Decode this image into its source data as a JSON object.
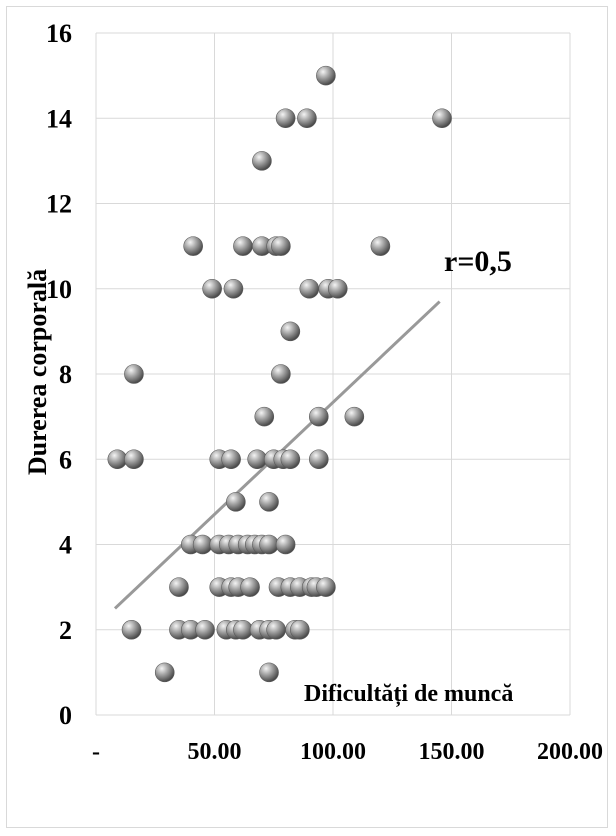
{
  "chart_data": {
    "type": "scatter",
    "title": "",
    "xlabel": "Dificultăți de muncă",
    "ylabel": "Durerea corporală",
    "annotation": "r=0,5",
    "xlim": [
      0,
      200
    ],
    "ylim": [
      0,
      16
    ],
    "x_ticks": [
      {
        "value": 0,
        "label": "-"
      },
      {
        "value": 50,
        "label": "50.00"
      },
      {
        "value": 100,
        "label": "100.00"
      },
      {
        "value": 150,
        "label": "150.00"
      },
      {
        "value": 200,
        "label": "200.00"
      }
    ],
    "y_ticks": [
      0,
      2,
      4,
      6,
      8,
      10,
      12,
      14,
      16
    ],
    "grid": true,
    "colors": {
      "point": "#8c8c8c",
      "trendline": "#999999",
      "grid": "#d9d9d9"
    },
    "trendline": {
      "x": [
        8,
        145
      ],
      "y": [
        2.5,
        9.7
      ]
    },
    "points": [
      {
        "x": 97,
        "y": 15
      },
      {
        "x": 80,
        "y": 14
      },
      {
        "x": 89,
        "y": 14
      },
      {
        "x": 146,
        "y": 14
      },
      {
        "x": 70,
        "y": 13
      },
      {
        "x": 41,
        "y": 11
      },
      {
        "x": 62,
        "y": 11
      },
      {
        "x": 70,
        "y": 11
      },
      {
        "x": 76,
        "y": 11
      },
      {
        "x": 78,
        "y": 11
      },
      {
        "x": 120,
        "y": 11
      },
      {
        "x": 49,
        "y": 10
      },
      {
        "x": 58,
        "y": 10
      },
      {
        "x": 90,
        "y": 10
      },
      {
        "x": 98,
        "y": 10
      },
      {
        "x": 102,
        "y": 10
      },
      {
        "x": 82,
        "y": 9
      },
      {
        "x": 16,
        "y": 8
      },
      {
        "x": 78,
        "y": 8
      },
      {
        "x": 71,
        "y": 7
      },
      {
        "x": 94,
        "y": 7
      },
      {
        "x": 109,
        "y": 7
      },
      {
        "x": 9,
        "y": 6
      },
      {
        "x": 16,
        "y": 6
      },
      {
        "x": 52,
        "y": 6
      },
      {
        "x": 57,
        "y": 6
      },
      {
        "x": 68,
        "y": 6
      },
      {
        "x": 75,
        "y": 6
      },
      {
        "x": 79,
        "y": 6
      },
      {
        "x": 82,
        "y": 6
      },
      {
        "x": 94,
        "y": 6
      },
      {
        "x": 59,
        "y": 5
      },
      {
        "x": 73,
        "y": 5
      },
      {
        "x": 40,
        "y": 4
      },
      {
        "x": 45,
        "y": 4
      },
      {
        "x": 52,
        "y": 4
      },
      {
        "x": 56,
        "y": 4
      },
      {
        "x": 60,
        "y": 4
      },
      {
        "x": 64,
        "y": 4
      },
      {
        "x": 67,
        "y": 4
      },
      {
        "x": 70,
        "y": 4
      },
      {
        "x": 73,
        "y": 4
      },
      {
        "x": 80,
        "y": 4
      },
      {
        "x": 35,
        "y": 3
      },
      {
        "x": 52,
        "y": 3
      },
      {
        "x": 57,
        "y": 3
      },
      {
        "x": 60,
        "y": 3
      },
      {
        "x": 65,
        "y": 3
      },
      {
        "x": 77,
        "y": 3
      },
      {
        "x": 82,
        "y": 3
      },
      {
        "x": 86,
        "y": 3
      },
      {
        "x": 91,
        "y": 3
      },
      {
        "x": 93,
        "y": 3
      },
      {
        "x": 97,
        "y": 3
      },
      {
        "x": 15,
        "y": 2
      },
      {
        "x": 35,
        "y": 2
      },
      {
        "x": 40,
        "y": 2
      },
      {
        "x": 46,
        "y": 2
      },
      {
        "x": 55,
        "y": 2
      },
      {
        "x": 59,
        "y": 2
      },
      {
        "x": 62,
        "y": 2
      },
      {
        "x": 69,
        "y": 2
      },
      {
        "x": 73,
        "y": 2
      },
      {
        "x": 76,
        "y": 2
      },
      {
        "x": 84,
        "y": 2
      },
      {
        "x": 86,
        "y": 2
      },
      {
        "x": 29,
        "y": 1
      },
      {
        "x": 73,
        "y": 1
      }
    ]
  }
}
